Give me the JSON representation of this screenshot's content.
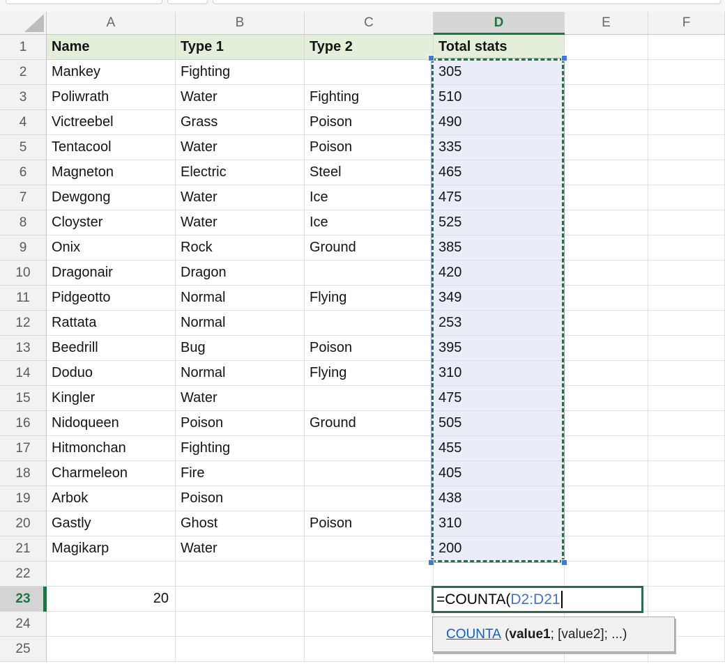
{
  "app": {
    "type": "spreadsheet"
  },
  "column_headers": [
    "A",
    "B",
    "C",
    "D",
    "E",
    "F"
  ],
  "row_count": 25,
  "selected_column": "D",
  "active_row": 23,
  "table": {
    "headers": [
      "Name",
      "Type 1",
      "Type 2",
      "Total stats"
    ],
    "rows": [
      [
        "Mankey",
        "Fighting",
        "",
        "305"
      ],
      [
        "Poliwrath",
        "Water",
        "Fighting",
        "510"
      ],
      [
        "Victreebel",
        "Grass",
        "Poison",
        "490"
      ],
      [
        "Tentacool",
        "Water",
        "Poison",
        "335"
      ],
      [
        "Magneton",
        "Electric",
        "Steel",
        "465"
      ],
      [
        "Dewgong",
        "Water",
        "Ice",
        "475"
      ],
      [
        "Cloyster",
        "Water",
        "Ice",
        "525"
      ],
      [
        "Onix",
        "Rock",
        "Ground",
        "385"
      ],
      [
        "Dragonair",
        "Dragon",
        "",
        "420"
      ],
      [
        "Pidgeotto",
        "Normal",
        "Flying",
        "349"
      ],
      [
        "Rattata",
        "Normal",
        "",
        "253"
      ],
      [
        "Beedrill",
        "Bug",
        "Poison",
        "395"
      ],
      [
        "Doduo",
        "Normal",
        "Flying",
        "310"
      ],
      [
        "Kingler",
        "Water",
        "",
        "475"
      ],
      [
        "Nidoqueen",
        "Poison",
        "Ground",
        "505"
      ],
      [
        "Hitmonchan",
        "Fighting",
        "",
        "455"
      ],
      [
        "Charmeleon",
        "Fire",
        "",
        "405"
      ],
      [
        "Arbok",
        "Poison",
        "",
        "438"
      ],
      [
        "Gastly",
        "Ghost",
        "Poison",
        "310"
      ],
      [
        "Magikarp",
        "Water",
        "",
        "200"
      ]
    ]
  },
  "selection": {
    "range": "D2:D21",
    "first_row": 2,
    "last_row": 21
  },
  "cells": {
    "a23": "20"
  },
  "formula": {
    "prefix": "=COUNTA(",
    "reference": "D2:D21"
  },
  "tooltip": {
    "function_name": "COUNTA",
    "args_open": " (",
    "arg1": "value1",
    "args_rest": "; [value2]; ...)"
  },
  "colors": {
    "accent_green": "#217346",
    "header_fill_green": "#e3efda",
    "selection_fill": "#eaecf8",
    "reference_blue": "#4472c4",
    "handle_blue": "#4779c9",
    "link_blue": "#0d5fd0"
  }
}
